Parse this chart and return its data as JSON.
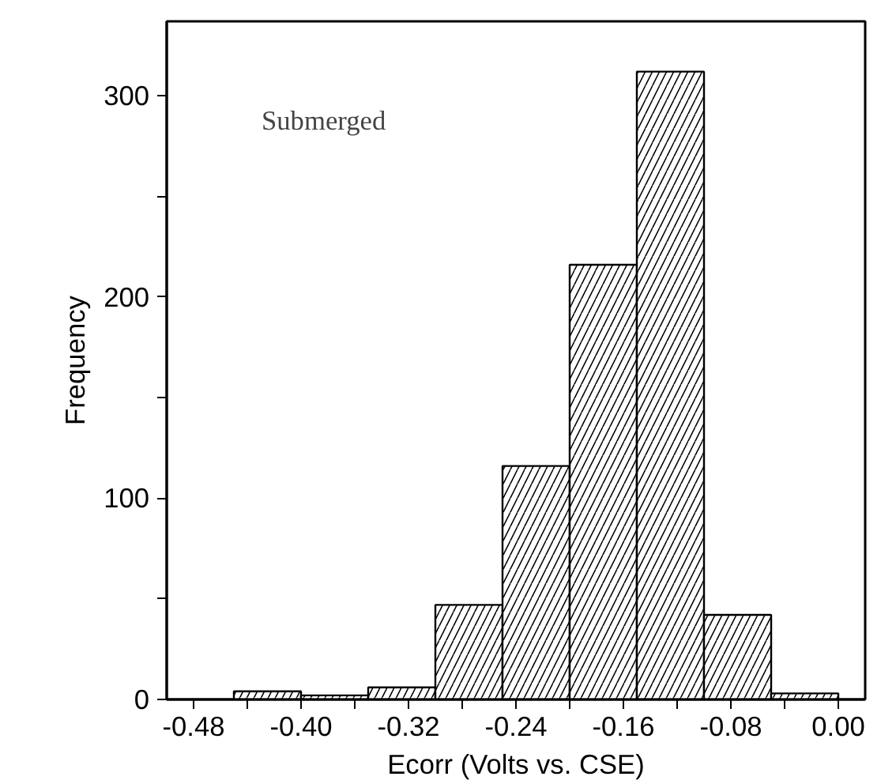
{
  "chart_data": {
    "type": "histogram",
    "xlabel": "Ecorr (Volts vs. CSE)",
    "ylabel": "Frequency",
    "annotations": [
      "Submerged"
    ],
    "bins": [
      -0.45,
      -0.4,
      -0.35,
      -0.3,
      -0.25,
      -0.2,
      -0.15,
      -0.1,
      -0.05,
      0.0
    ],
    "values": [
      4,
      2,
      6,
      47,
      116,
      216,
      312,
      42,
      3
    ],
    "color": "#ffffff",
    "xlim": [
      -0.5,
      0.02
    ],
    "ylim": [
      0,
      337
    ],
    "xticks": [
      {
        "value": -0.48,
        "label": "-0.48"
      },
      {
        "value": -0.44,
        "label": null
      },
      {
        "value": -0.4,
        "label": "-0.40"
      },
      {
        "value": -0.36,
        "label": null
      },
      {
        "value": -0.32,
        "label": "-0.32"
      },
      {
        "value": -0.28,
        "label": null
      },
      {
        "value": -0.24,
        "label": "-0.24"
      },
      {
        "value": -0.2,
        "label": null
      },
      {
        "value": -0.16,
        "label": "-0.16"
      },
      {
        "value": -0.12,
        "label": null
      },
      {
        "value": -0.08,
        "label": "-0.08"
      },
      {
        "value": -0.04,
        "label": null
      },
      {
        "value": 0.0,
        "label": "0.00"
      }
    ],
    "yticks": [
      0,
      {
        "value": 50,
        "label": null
      },
      100,
      {
        "value": 150,
        "label": null
      },
      200,
      {
        "value": 250,
        "label": null
      },
      300
    ],
    "grid": false
  }
}
